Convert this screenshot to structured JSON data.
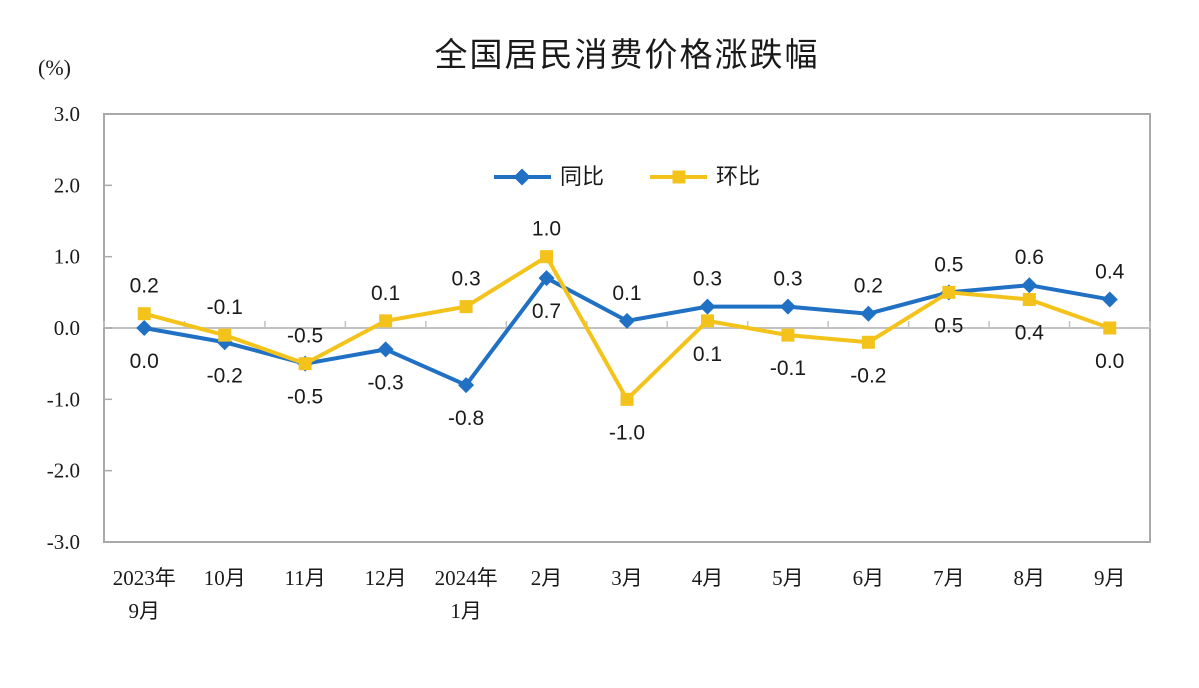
{
  "title": "全国居民消费价格涨跌幅",
  "unit_label": "(%)",
  "colors": {
    "series_tongbi": "#2070C4",
    "series_huanbi": "#F3C31C",
    "plot_frame": "#A9A9A9",
    "zero_line": "#C2C2C2",
    "text": "#1a1a1a"
  },
  "chart_data": {
    "type": "line",
    "title": "全国居民消费价格涨跌幅",
    "ylabel": "(%)",
    "categories": [
      [
        "2023年",
        "9月"
      ],
      [
        "10月"
      ],
      [
        "11月"
      ],
      [
        "12月"
      ],
      [
        "2024年",
        "1月"
      ],
      [
        "2月"
      ],
      [
        "3月"
      ],
      [
        "4月"
      ],
      [
        "5月"
      ],
      [
        "6月"
      ],
      [
        "7月"
      ],
      [
        "8月"
      ],
      [
        "9月"
      ]
    ],
    "series": [
      {
        "name": "同比",
        "marker": "diamond",
        "color": "#2070C4",
        "values": [
          0.0,
          -0.2,
          -0.5,
          -0.3,
          -0.8,
          0.7,
          0.1,
          0.3,
          0.3,
          0.2,
          0.5,
          0.6,
          0.4
        ],
        "label_side": [
          "below",
          "below",
          "below",
          "below",
          "below",
          "below",
          "above",
          "above",
          "above",
          "above",
          "above",
          "above",
          "above"
        ]
      },
      {
        "name": "环比",
        "marker": "square",
        "color": "#F3C31C",
        "values": [
          0.2,
          -0.1,
          -0.5,
          0.1,
          0.3,
          1.0,
          -1.0,
          0.1,
          -0.1,
          -0.2,
          0.5,
          0.4,
          0.0
        ],
        "label_side": [
          "above",
          "above",
          "above",
          "above",
          "above",
          "above",
          "below",
          "below",
          "below",
          "below",
          "below",
          "below",
          "below"
        ]
      }
    ],
    "ylim": [
      -3.0,
      3.0
    ],
    "ytick_labels": [
      "3.0",
      "2.0",
      "1.0",
      "0.0",
      "-1.0",
      "-2.0",
      "-3.0"
    ],
    "grid": false,
    "zero_axis_line": true,
    "legend_position": "top-center-inside"
  }
}
